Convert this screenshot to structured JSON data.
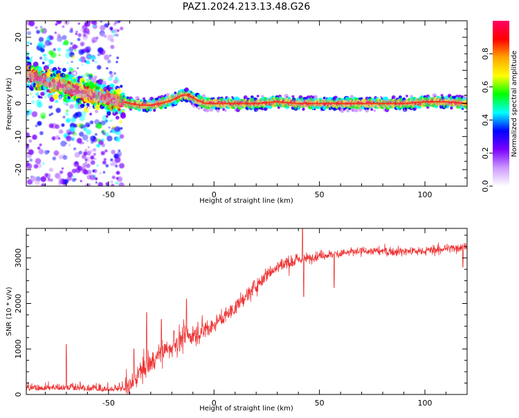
{
  "title": "PAZ1.2024.213.13.48.G26",
  "chart_data": [
    {
      "type": "heatmap",
      "xlabel": "Height of straight line (km)",
      "ylabel": "Frequency (Hz)",
      "xlim": [
        -89,
        120
      ],
      "ylim": [
        -25,
        25
      ],
      "xticks": [
        -50,
        0,
        50,
        100
      ],
      "yticks": [
        -20,
        -10,
        0,
        10,
        20
      ],
      "colorbar": {
        "label": "Normalized spectral amplitude",
        "range": [
          0,
          1
        ],
        "ticks": [
          0.0,
          0.2,
          0.4,
          0.6,
          0.8
        ],
        "tick_labels": [
          "0.0",
          "0.2",
          "0.4",
          "0.6",
          "0.8"
        ],
        "colormap": [
          "#ffffff",
          "#cc99ff",
          "#7a00ff",
          "#0000ff",
          "#00ffff",
          "#00ff00",
          "#ffff00",
          "#ffa500",
          "#ff0000",
          "#ff0066"
        ]
      },
      "ridge": {
        "x": [
          -89,
          -80,
          -70,
          -60,
          -50,
          -43,
          -40,
          -35,
          -30,
          -25,
          -20,
          -15,
          -12,
          -8,
          -4,
          0,
          10,
          20,
          30,
          40,
          50,
          60,
          70,
          80,
          90,
          100,
          110,
          120
        ],
        "y": [
          9,
          7,
          5,
          3,
          1.5,
          0.5,
          0,
          -0.5,
          -0.5,
          0,
          1,
          2.5,
          2.5,
          1,
          0,
          0,
          0,
          0,
          0.5,
          0,
          0,
          0,
          0,
          0,
          0,
          0.5,
          0.5,
          0
        ]
      }
    },
    {
      "type": "line",
      "xlabel": "Height of straight line (km)",
      "ylabel": "SNR (10 * v/v)",
      "xlim": [
        -89,
        120
      ],
      "ylim": [
        0,
        3650
      ],
      "xticks": [
        -50,
        0,
        50,
        100
      ],
      "yticks": [
        0,
        1000,
        2000,
        3000
      ],
      "color": "#ee3333",
      "trend": {
        "x": [
          -89,
          -70,
          -60,
          -45,
          -40,
          -35,
          -30,
          -25,
          -20,
          -15,
          -10,
          -5,
          0,
          5,
          10,
          15,
          20,
          25,
          30,
          35,
          40,
          45,
          50,
          60,
          70,
          80,
          90,
          100,
          110,
          120
        ],
        "y": [
          120,
          140,
          120,
          100,
          150,
          500,
          700,
          900,
          1050,
          1250,
          1300,
          1400,
          1550,
          1700,
          1900,
          2150,
          2400,
          2650,
          2800,
          2900,
          2950,
          3000,
          3050,
          3100,
          3150,
          3150,
          3150,
          3150,
          3200,
          3250
        ]
      },
      "spikes": [
        {
          "x": -70,
          "y": 1100
        },
        {
          "x": -38,
          "y": 1000
        },
        {
          "x": -32,
          "y": 1800
        },
        {
          "x": -25,
          "y": 1650
        },
        {
          "x": -19,
          "y": 1400
        },
        {
          "x": -13,
          "y": 2100
        },
        {
          "x": 42,
          "y": 3700
        },
        {
          "x": 42.5,
          "y": 2150
        },
        {
          "x": 57,
          "y": 2350
        },
        {
          "x": 118,
          "y": 2800
        }
      ]
    }
  ]
}
